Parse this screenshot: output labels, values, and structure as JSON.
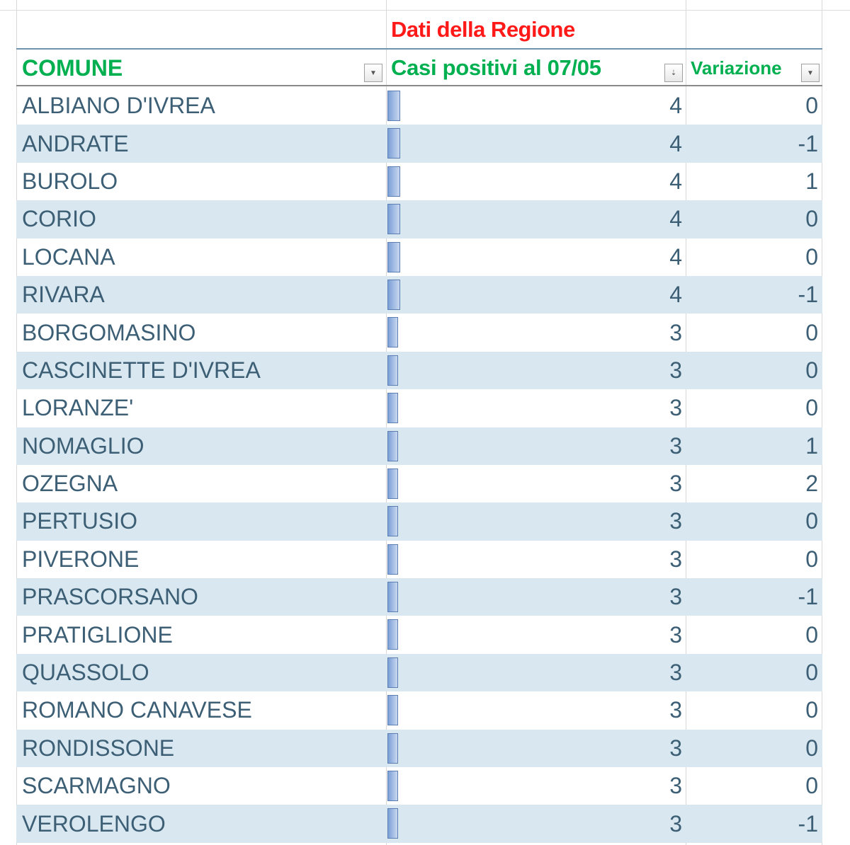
{
  "title": "Dati della Regione",
  "headers": {
    "comune": "COMUNE",
    "cases": "Casi positivi al 07/05",
    "variation": "Variazione"
  },
  "filter_icons": {
    "comune": "dropdown-arrow",
    "cases": "sort-descending",
    "variation": "dropdown-arrow"
  },
  "colors": {
    "title": "#ff1a1a",
    "header": "#00b050",
    "stripe": "#d9e7f0",
    "data_bar": "#7b9fd6"
  },
  "rows": [
    {
      "comune": "ALBIANO D'IVREA",
      "cases": "4",
      "variation": "0"
    },
    {
      "comune": "ANDRATE",
      "cases": "4",
      "variation": "-1"
    },
    {
      "comune": "BUROLO",
      "cases": "4",
      "variation": "1"
    },
    {
      "comune": "CORIO",
      "cases": "4",
      "variation": "0"
    },
    {
      "comune": "LOCANA",
      "cases": "4",
      "variation": "0"
    },
    {
      "comune": "RIVARA",
      "cases": "4",
      "variation": "-1"
    },
    {
      "comune": "BORGOMASINO",
      "cases": "3",
      "variation": "0"
    },
    {
      "comune": "CASCINETTE D'IVREA",
      "cases": "3",
      "variation": "0"
    },
    {
      "comune": "LORANZE'",
      "cases": "3",
      "variation": "0"
    },
    {
      "comune": "NOMAGLIO",
      "cases": "3",
      "variation": "1"
    },
    {
      "comune": "OZEGNA",
      "cases": "3",
      "variation": "2"
    },
    {
      "comune": "PERTUSIO",
      "cases": "3",
      "variation": "0"
    },
    {
      "comune": "PIVERONE",
      "cases": "3",
      "variation": "0"
    },
    {
      "comune": "PRASCORSANO",
      "cases": "3",
      "variation": "-1"
    },
    {
      "comune": "PRATIGLIONE",
      "cases": "3",
      "variation": "0"
    },
    {
      "comune": "QUASSOLO",
      "cases": "3",
      "variation": "0"
    },
    {
      "comune": "ROMANO CANAVESE",
      "cases": "3",
      "variation": "0"
    },
    {
      "comune": "RONDISSONE",
      "cases": "3",
      "variation": "0"
    },
    {
      "comune": "SCARMAGNO",
      "cases": "3",
      "variation": "0"
    },
    {
      "comune": "VEROLENGO",
      "cases": "3",
      "variation": "-1"
    }
  ]
}
